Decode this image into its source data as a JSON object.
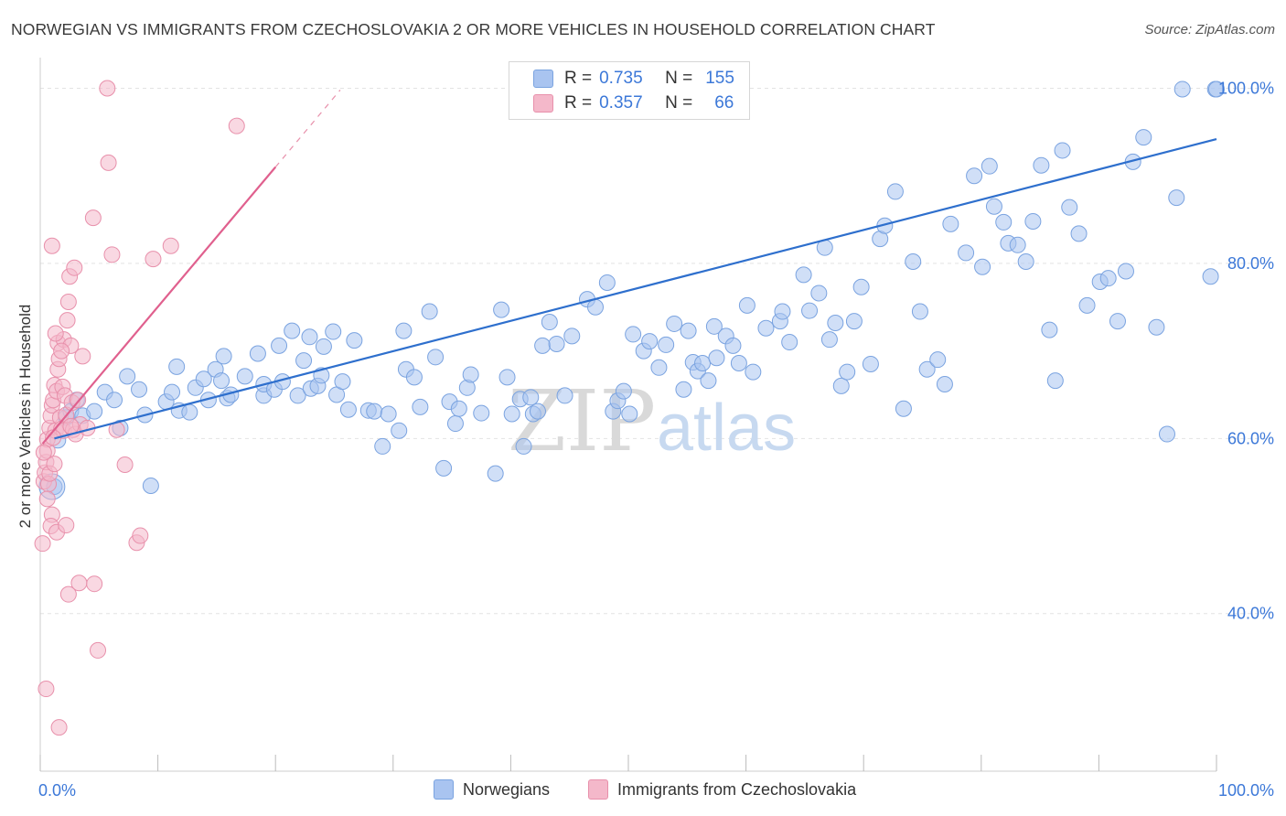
{
  "title": "NORWEGIAN VS IMMIGRANTS FROM CZECHOSLOVAKIA 2 OR MORE VEHICLES IN HOUSEHOLD CORRELATION CHART",
  "source": "Source: ZipAtlas.com",
  "watermark": {
    "zip": "ZIP",
    "atlas": "atlas"
  },
  "legend": {
    "r_label": "R =",
    "n_label": "N =",
    "rows": [
      {
        "r": "0.735",
        "n": "155"
      },
      {
        "r": "0.357",
        "n": "66"
      }
    ]
  },
  "colors": {
    "blue_fill": "#a9c4f0",
    "blue_stroke": "#7aa3e0",
    "blue_line": "#2e6fcd",
    "pink_fill": "#f4b8ca",
    "pink_stroke": "#e890ab",
    "pink_line": "#e0608e",
    "axis_label": "#3c78d8",
    "grid": "#e3e3e3"
  },
  "chart_data": {
    "type": "scatter",
    "title": "NORWEGIAN VS IMMIGRANTS FROM CZECHOSLOVAKIA 2 OR MORE VEHICLES IN HOUSEHOLD CORRELATION CHART",
    "xlabel": "",
    "ylabel": "2 or more Vehicles in Household",
    "xlim": [
      0,
      100
    ],
    "ylim": [
      22,
      103.5
    ],
    "x_tick_labels": [
      "0.0%",
      "100.0%"
    ],
    "y_tick_labels": [
      "40.0%",
      "60.0%",
      "80.0%",
      "100.0%"
    ],
    "y_ticks": [
      40,
      60,
      80,
      100
    ],
    "grid": true,
    "legend_position": "bottom",
    "series": [
      {
        "name": "Norwegians",
        "color": "#a9c4f0",
        "trend": {
          "x": [
            1.2,
            100
          ],
          "y": [
            60.0,
            94.2
          ]
        },
        "points": [
          [
            1.2,
            54.5
          ],
          [
            1.5,
            59.8
          ],
          [
            2.2,
            62.4
          ],
          [
            2.6,
            63.1
          ],
          [
            3.1,
            64.4
          ],
          [
            3.6,
            62.6
          ],
          [
            4.6,
            63.1
          ],
          [
            5.5,
            65.3
          ],
          [
            6.3,
            64.4
          ],
          [
            6.8,
            61.2
          ],
          [
            7.4,
            67.1
          ],
          [
            8.4,
            65.6
          ],
          [
            8.9,
            62.7
          ],
          [
            9.4,
            54.6
          ],
          [
            10.7,
            64.2
          ],
          [
            11.2,
            65.3
          ],
          [
            11.6,
            68.2
          ],
          [
            11.8,
            63.2
          ],
          [
            12.7,
            63.0
          ],
          [
            13.2,
            65.8
          ],
          [
            13.9,
            66.8
          ],
          [
            14.3,
            64.4
          ],
          [
            14.9,
            67.9
          ],
          [
            15.4,
            66.6
          ],
          [
            15.6,
            69.4
          ],
          [
            15.9,
            64.6
          ],
          [
            16.2,
            65.0
          ],
          [
            17.4,
            67.1
          ],
          [
            18.5,
            69.7
          ],
          [
            19.0,
            64.9
          ],
          [
            19.0,
            66.2
          ],
          [
            19.9,
            65.6
          ],
          [
            20.3,
            70.6
          ],
          [
            20.6,
            66.5
          ],
          [
            21.4,
            72.3
          ],
          [
            21.9,
            64.9
          ],
          [
            22.4,
            68.9
          ],
          [
            22.9,
            71.6
          ],
          [
            23.0,
            65.7
          ],
          [
            23.6,
            66.0
          ],
          [
            23.9,
            67.2
          ],
          [
            24.1,
            70.5
          ],
          [
            24.9,
            72.2
          ],
          [
            25.2,
            65.0
          ],
          [
            25.7,
            66.5
          ],
          [
            26.2,
            63.3
          ],
          [
            26.7,
            71.2
          ],
          [
            27.9,
            63.2
          ],
          [
            28.4,
            63.1
          ],
          [
            29.1,
            59.1
          ],
          [
            29.6,
            62.8
          ],
          [
            30.5,
            60.9
          ],
          [
            30.9,
            72.3
          ],
          [
            31.1,
            67.9
          ],
          [
            31.8,
            67.0
          ],
          [
            32.3,
            63.6
          ],
          [
            33.1,
            74.5
          ],
          [
            33.6,
            69.3
          ],
          [
            34.3,
            56.6
          ],
          [
            34.8,
            64.2
          ],
          [
            35.3,
            61.7
          ],
          [
            35.6,
            63.4
          ],
          [
            36.3,
            65.8
          ],
          [
            36.6,
            67.3
          ],
          [
            37.5,
            62.9
          ],
          [
            38.7,
            56.0
          ],
          [
            39.2,
            74.7
          ],
          [
            39.7,
            67.0
          ],
          [
            40.1,
            62.8
          ],
          [
            40.8,
            64.5
          ],
          [
            41.1,
            59.1
          ],
          [
            41.7,
            64.7
          ],
          [
            41.9,
            62.8
          ],
          [
            42.3,
            63.1
          ],
          [
            42.7,
            70.6
          ],
          [
            43.3,
            73.3
          ],
          [
            43.9,
            70.8
          ],
          [
            44.6,
            64.9
          ],
          [
            45.2,
            71.7
          ],
          [
            46.5,
            75.9
          ],
          [
            47.2,
            75.0
          ],
          [
            48.2,
            77.8
          ],
          [
            48.7,
            63.1
          ],
          [
            49.1,
            64.3
          ],
          [
            49.6,
            65.4
          ],
          [
            50.1,
            62.8
          ],
          [
            50.4,
            71.9
          ],
          [
            51.3,
            70.0
          ],
          [
            51.8,
            71.1
          ],
          [
            52.6,
            68.1
          ],
          [
            53.2,
            70.7
          ],
          [
            53.9,
            73.1
          ],
          [
            54.7,
            65.6
          ],
          [
            55.1,
            72.3
          ],
          [
            55.5,
            68.7
          ],
          [
            55.9,
            67.7
          ],
          [
            56.3,
            68.6
          ],
          [
            56.8,
            66.6
          ],
          [
            57.3,
            72.8
          ],
          [
            57.5,
            69.2
          ],
          [
            58.3,
            71.7
          ],
          [
            58.9,
            70.6
          ],
          [
            59.4,
            68.6
          ],
          [
            60.1,
            75.2
          ],
          [
            60.6,
            67.6
          ],
          [
            61.7,
            72.6
          ],
          [
            62.9,
            73.4
          ],
          [
            63.1,
            74.5
          ],
          [
            63.7,
            71.0
          ],
          [
            64.9,
            78.7
          ],
          [
            65.4,
            74.6
          ],
          [
            66.2,
            76.6
          ],
          [
            66.7,
            81.8
          ],
          [
            67.1,
            71.3
          ],
          [
            67.6,
            73.2
          ],
          [
            68.1,
            66.0
          ],
          [
            68.6,
            67.6
          ],
          [
            69.2,
            73.4
          ],
          [
            69.8,
            77.3
          ],
          [
            70.6,
            68.5
          ],
          [
            71.4,
            82.8
          ],
          [
            71.8,
            84.3
          ],
          [
            72.7,
            88.2
          ],
          [
            73.4,
            63.4
          ],
          [
            74.2,
            80.2
          ],
          [
            74.8,
            74.5
          ],
          [
            75.4,
            67.9
          ],
          [
            76.3,
            69.0
          ],
          [
            76.9,
            66.2
          ],
          [
            77.4,
            84.5
          ],
          [
            78.7,
            81.2
          ],
          [
            79.4,
            90.0
          ],
          [
            80.1,
            79.6
          ],
          [
            80.7,
            91.1
          ],
          [
            81.1,
            86.5
          ],
          [
            81.9,
            84.7
          ],
          [
            82.3,
            82.3
          ],
          [
            83.1,
            82.1
          ],
          [
            83.8,
            80.2
          ],
          [
            84.4,
            84.8
          ],
          [
            85.1,
            91.2
          ],
          [
            85.8,
            72.4
          ],
          [
            86.3,
            66.6
          ],
          [
            86.9,
            92.9
          ],
          [
            87.5,
            86.4
          ],
          [
            88.3,
            83.4
          ],
          [
            89.0,
            75.2
          ],
          [
            90.1,
            77.9
          ],
          [
            90.8,
            78.3
          ],
          [
            91.6,
            73.4
          ],
          [
            92.3,
            79.1
          ],
          [
            92.9,
            91.6
          ],
          [
            93.8,
            94.4
          ],
          [
            94.9,
            72.7
          ],
          [
            95.8,
            60.5
          ],
          [
            96.6,
            87.5
          ],
          [
            97.1,
            99.9
          ],
          [
            99.5,
            78.5
          ],
          [
            99.9,
            99.9
          ],
          [
            100,
            99.9
          ]
        ]
      },
      {
        "name": "Immigrants from Czechoslovakia",
        "color": "#f4b8ca",
        "trend": {
          "x": [
            0.2,
            20.0
          ],
          "y": [
            59.4,
            91.0
          ],
          "dashed_to": {
            "x": 25.5,
            "y": 99.8
          }
        },
        "points": [
          [
            0.2,
            48.0
          ],
          [
            0.3,
            55.1
          ],
          [
            0.4,
            56.1
          ],
          [
            0.5,
            57.3
          ],
          [
            0.6,
            58.6
          ],
          [
            0.6,
            59.9
          ],
          [
            0.7,
            54.8
          ],
          [
            0.8,
            56.0
          ],
          [
            0.8,
            61.2
          ],
          [
            0.9,
            62.6
          ],
          [
            1.0,
            63.8
          ],
          [
            1.0,
            51.3
          ],
          [
            1.1,
            64.4
          ],
          [
            1.2,
            57.1
          ],
          [
            1.2,
            66.1
          ],
          [
            1.3,
            60.9
          ],
          [
            1.4,
            65.4
          ],
          [
            1.5,
            67.9
          ],
          [
            1.5,
            70.9
          ],
          [
            1.6,
            69.1
          ],
          [
            1.7,
            62.4
          ],
          [
            1.8,
            61.1
          ],
          [
            1.9,
            65.9
          ],
          [
            2.0,
            60.9
          ],
          [
            2.0,
            71.3
          ],
          [
            2.1,
            64.9
          ],
          [
            2.2,
            62.7
          ],
          [
            2.3,
            73.5
          ],
          [
            2.4,
            75.6
          ],
          [
            2.5,
            78.5
          ],
          [
            2.6,
            70.6
          ],
          [
            2.7,
            64.1
          ],
          [
            2.8,
            61.0
          ],
          [
            2.9,
            79.5
          ],
          [
            3.0,
            60.5
          ],
          [
            3.2,
            64.4
          ],
          [
            3.4,
            61.6
          ],
          [
            3.6,
            69.4
          ],
          [
            4.0,
            61.2
          ],
          [
            4.5,
            85.2
          ],
          [
            4.9,
            35.8
          ],
          [
            5.7,
            100.0
          ],
          [
            5.8,
            91.5
          ],
          [
            6.1,
            81.0
          ],
          [
            6.5,
            61.0
          ],
          [
            7.2,
            57.0
          ],
          [
            8.2,
            48.1
          ],
          [
            8.5,
            48.9
          ],
          [
            9.6,
            80.5
          ],
          [
            11.1,
            82.0
          ],
          [
            16.7,
            95.7
          ],
          [
            1.0,
            82.0
          ],
          [
            1.3,
            72.0
          ],
          [
            1.8,
            70.0
          ],
          [
            2.4,
            42.2
          ],
          [
            3.3,
            43.5
          ],
          [
            4.6,
            43.4
          ],
          [
            0.5,
            31.4
          ],
          [
            1.6,
            27.0
          ],
          [
            0.9,
            50.0
          ],
          [
            1.4,
            49.3
          ],
          [
            2.2,
            50.1
          ],
          [
            0.3,
            58.4
          ],
          [
            0.6,
            53.1
          ],
          [
            1.1,
            60.1
          ],
          [
            2.6,
            61.4
          ]
        ]
      }
    ]
  },
  "bottom_legend": [
    "Norwegians",
    "Immigrants from Czechoslovakia"
  ]
}
